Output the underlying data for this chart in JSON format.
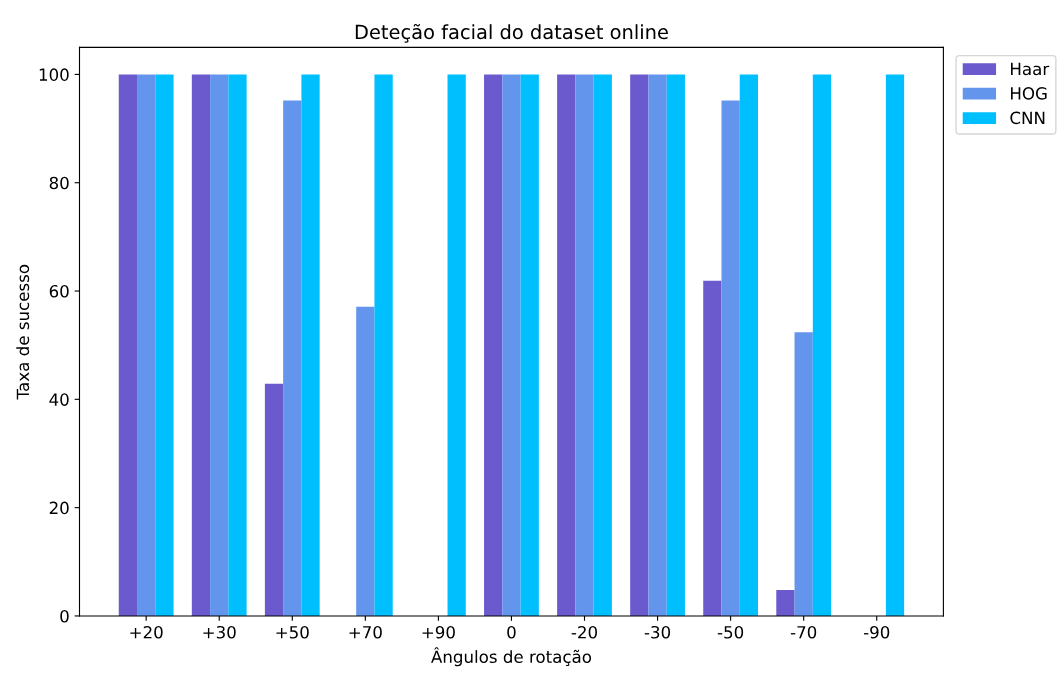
{
  "chart_data": {
    "type": "bar",
    "title": "Deteção facial do dataset online",
    "xlabel": "Ângulos de rotação",
    "ylabel": "Taxa de sucesso",
    "categories": [
      "+20",
      "+30",
      "+50",
      "+70",
      "+90",
      "0",
      "-20",
      "-30",
      "-50",
      "-70",
      "-90"
    ],
    "series": [
      {
        "name": "Haar",
        "color": "#6a5acd",
        "values": [
          100,
          100,
          42.9,
          0,
          0,
          100,
          100,
          100,
          61.9,
          4.8,
          0
        ]
      },
      {
        "name": "HOG",
        "color": "#6495ed",
        "values": [
          100,
          100,
          95.2,
          57.1,
          0,
          100,
          100,
          100,
          95.2,
          52.4,
          0
        ]
      },
      {
        "name": "CNN",
        "color": "#00bfff",
        "values": [
          100,
          100,
          100,
          100,
          100,
          100,
          100,
          100,
          100,
          100,
          100
        ]
      }
    ],
    "ylim": [
      0,
      105
    ],
    "yticks": [
      0,
      20,
      40,
      60,
      80,
      100
    ],
    "grid": false,
    "legend": "right"
  }
}
